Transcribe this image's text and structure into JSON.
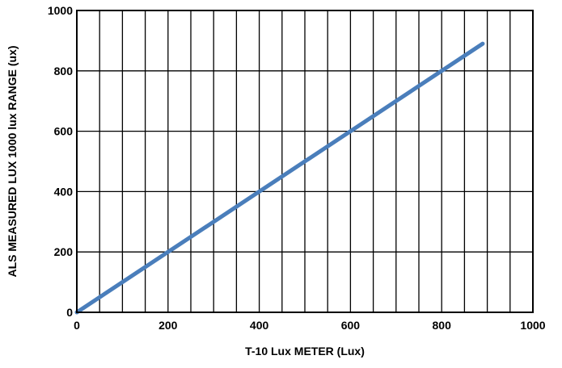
{
  "chart_data": {
    "type": "line",
    "title": "",
    "xlabel": "T-10 Lux METER (Lux)",
    "ylabel": "ALS MEASURED LUX 1000 lux RANGE (ux)",
    "xlim": [
      0,
      1000
    ],
    "ylim": [
      0,
      1000
    ],
    "x_ticks": [
      0,
      200,
      400,
      600,
      800,
      1000
    ],
    "y_ticks": [
      0,
      200,
      400,
      600,
      800,
      1000
    ],
    "x_tick_labels": [
      "0",
      "200",
      "400",
      "600",
      "800",
      "1000"
    ],
    "y_tick_labels": [
      "0",
      "200",
      "400",
      "600",
      "800",
      "1000"
    ],
    "x_grid_step": 50,
    "y_grid_step": 200,
    "grid": true,
    "legend": "none",
    "series": [
      {
        "color": "#4a7ebb",
        "x": [
          0,
          890
        ],
        "y": [
          0,
          890
        ]
      }
    ]
  }
}
